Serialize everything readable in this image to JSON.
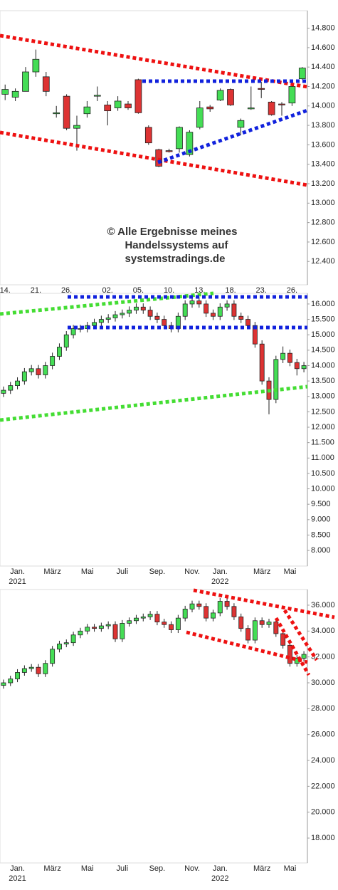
{
  "chart_data": [
    {
      "type": "candlestick",
      "categories": [
        "14.",
        null,
        null,
        "21.",
        null,
        null,
        "26.",
        null,
        null,
        null,
        "02.",
        null,
        null,
        "05.",
        null,
        null,
        "10.",
        null,
        null,
        "13.",
        null,
        null,
        "18.",
        null,
        null,
        "23.",
        null,
        null,
        "26.",
        null
      ],
      "open": [
        14120,
        14090,
        14150,
        14350,
        14300,
        13920,
        14100,
        13770,
        13920,
        14100,
        14010,
        13980,
        14020,
        14270,
        13780,
        13550,
        13540,
        13560,
        13500,
        13780,
        13990,
        14060,
        14170,
        13780,
        13970,
        14180,
        14040,
        14020,
        14030,
        14280
      ],
      "high": [
        14220,
        14180,
        14400,
        14580,
        14350,
        14000,
        14120,
        13900,
        14050,
        14200,
        14050,
        14100,
        14050,
        14280,
        13800,
        13560,
        13560,
        13790,
        13750,
        14050,
        14010,
        14180,
        14180,
        13870,
        14200,
        14250,
        14050,
        14040,
        14230,
        14400
      ],
      "low": [
        14060,
        14050,
        14150,
        14300,
        14100,
        13880,
        13750,
        13540,
        13880,
        14050,
        13800,
        13950,
        13960,
        13920,
        13600,
        13370,
        13520,
        13520,
        13480,
        13760,
        13940,
        14050,
        14000,
        13700,
        13960,
        14080,
        13900,
        13900,
        14000,
        14270
      ],
      "close": [
        14170,
        14150,
        14350,
        14480,
        14150,
        13930,
        13770,
        13800,
        13990,
        14110,
        13950,
        14050,
        13980,
        13930,
        13620,
        13380,
        13530,
        13780,
        13730,
        13980,
        13970,
        14160,
        14010,
        13850,
        13980,
        14170,
        13910,
        14010,
        14200,
        14390
      ],
      "ylim": [
        12160,
        14980
      ],
      "yticks": [
        {
          "value": 14800,
          "label": "14.800"
        },
        {
          "value": 14600,
          "label": "14.600"
        },
        {
          "value": 14400,
          "label": "14.400"
        },
        {
          "value": 14200,
          "label": "14.200"
        },
        {
          "value": 14000,
          "label": "14.000"
        },
        {
          "value": 13800,
          "label": "13.800"
        },
        {
          "value": 13600,
          "label": "13.600"
        },
        {
          "value": 13400,
          "label": "13.400"
        },
        {
          "value": 13200,
          "label": "13.200"
        },
        {
          "value": 13000,
          "label": "13.000"
        },
        {
          "value": 12800,
          "label": "12.800"
        },
        {
          "value": 12600,
          "label": "12.600"
        },
        {
          "value": 12400,
          "label": "12.400"
        }
      ],
      "up_color": "#44dd55",
      "down_color": "#dd3333",
      "annotation": [
        "© Alle Ergebnisse meines",
        "Handelssystems auf",
        "systemstradings.de"
      ]
    },
    {
      "type": "candlestick",
      "categories": [
        null,
        null,
        "Jan.",
        null,
        null,
        null,
        null,
        "März",
        null,
        null,
        null,
        null,
        "Mai",
        null,
        null,
        null,
        null,
        "Juli",
        null,
        null,
        null,
        null,
        "Sep.",
        null,
        null,
        null,
        null,
        "Nov.",
        null,
        null,
        null,
        "Jan.",
        null,
        null,
        null,
        null,
        null,
        "März",
        null,
        null,
        null,
        "Mai",
        null,
        null
      ],
      "years": [
        null,
        null,
        "2021",
        null,
        null,
        null,
        null,
        null,
        null,
        null,
        null,
        null,
        null,
        null,
        null,
        null,
        null,
        null,
        null,
        null,
        null,
        null,
        null,
        null,
        null,
        null,
        null,
        null,
        null,
        null,
        null,
        "2022",
        null,
        null,
        null,
        null,
        null,
        null,
        null,
        null,
        null,
        null,
        null,
        null
      ],
      "open": [
        13100,
        13200,
        13350,
        13500,
        13800,
        13900,
        13700,
        14000,
        14300,
        14600,
        15000,
        15200,
        15200,
        15300,
        15400,
        15500,
        15550,
        15650,
        15700,
        15800,
        15900,
        15800,
        15600,
        15500,
        15300,
        15200,
        15600,
        16000,
        16100,
        16000,
        15700,
        15600,
        15900,
        16000,
        15600,
        15500,
        15300,
        14700,
        13500,
        12900,
        14200,
        14400,
        14100,
        13900
      ],
      "high": [
        13320,
        13470,
        13620,
        13920,
        14020,
        14020,
        14120,
        14420,
        14720,
        15120,
        15320,
        15320,
        15420,
        15520,
        15620,
        15670,
        15770,
        15820,
        15920,
        16020,
        16020,
        15920,
        15720,
        15620,
        15420,
        15720,
        16120,
        16220,
        16220,
        16120,
        15820,
        16020,
        16120,
        16120,
        15720,
        15620,
        15420,
        14820,
        13620,
        14320,
        14620,
        14520,
        14220,
        14120
      ],
      "low": [
        12980,
        13080,
        13230,
        13380,
        13680,
        13580,
        13580,
        13880,
        14180,
        14480,
        14880,
        15080,
        15080,
        15180,
        15280,
        15380,
        15430,
        15530,
        15580,
        15680,
        15680,
        15480,
        15380,
        15180,
        15080,
        15080,
        15480,
        15880,
        15880,
        15580,
        15480,
        15480,
        15780,
        15480,
        15380,
        15180,
        14580,
        13380,
        12420,
        12780,
        14080,
        13980,
        13680,
        13780
      ],
      "close": [
        13200,
        13350,
        13500,
        13800,
        13900,
        13700,
        14000,
        14300,
        14600,
        15000,
        15200,
        15200,
        15300,
        15400,
        15500,
        15550,
        15650,
        15700,
        15800,
        15900,
        15800,
        15600,
        15500,
        15300,
        15200,
        15600,
        16000,
        16100,
        16000,
        15700,
        15600,
        15900,
        16000,
        15600,
        15500,
        15300,
        14700,
        13500,
        12900,
        14200,
        14400,
        14100,
        13900,
        14000
      ],
      "ylim": [
        7494,
        16345
      ],
      "yticks": [
        {
          "value": 16000,
          "label": "16.000"
        },
        {
          "value": 15500,
          "label": "15.500"
        },
        {
          "value": 15000,
          "label": "15.000"
        },
        {
          "value": 14500,
          "label": "14.500"
        },
        {
          "value": 14000,
          "label": "14.000"
        },
        {
          "value": 13500,
          "label": "13.500"
        },
        {
          "value": 13000,
          "label": "13.000"
        },
        {
          "value": 12500,
          "label": "12.500"
        },
        {
          "value": 12000,
          "label": "12.000"
        },
        {
          "value": 11500,
          "label": "11.500"
        },
        {
          "value": 11000,
          "label": "11.000"
        },
        {
          "value": 10500,
          "label": "10.500"
        },
        {
          "value": 10000,
          "label": "10.000"
        },
        {
          "value": 9500,
          "label": "9.500"
        },
        {
          "value": 9000,
          "label": "9.000"
        },
        {
          "value": 8500,
          "label": "8.500"
        },
        {
          "value": 8000,
          "label": "8.000"
        }
      ],
      "up_color": "#44dd55",
      "down_color": "#dd3333"
    },
    {
      "type": "candlestick",
      "categories": [
        null,
        null,
        "Jan.",
        null,
        null,
        null,
        null,
        "März",
        null,
        null,
        null,
        null,
        "Mai",
        null,
        null,
        null,
        null,
        "Juli",
        null,
        null,
        null,
        null,
        "Sep.",
        null,
        null,
        null,
        null,
        "Nov.",
        null,
        null,
        null,
        "Jan.",
        null,
        null,
        null,
        null,
        null,
        "März",
        null,
        null,
        null,
        "Mai",
        null,
        null
      ],
      "years": [
        null,
        null,
        "2021",
        null,
        null,
        null,
        null,
        null,
        null,
        null,
        null,
        null,
        null,
        null,
        null,
        null,
        null,
        null,
        null,
        null,
        null,
        null,
        null,
        null,
        null,
        null,
        null,
        null,
        null,
        null,
        null,
        "2022",
        null,
        null,
        null,
        null,
        null,
        null,
        null,
        null,
        null,
        null,
        null,
        null
      ],
      "open": [
        29800,
        30000,
        30300,
        30800,
        31100,
        31200,
        30700,
        31500,
        32600,
        33000,
        33100,
        33700,
        34000,
        34300,
        34200,
        34400,
        34500,
        33400,
        34600,
        34800,
        35000,
        35100,
        35300,
        34700,
        34500,
        34100,
        35000,
        35700,
        36100,
        35900,
        35000,
        35400,
        36300,
        35900,
        35100,
        34200,
        33300,
        34800,
        34500,
        34700,
        33800,
        32900,
        31500,
        31900
      ],
      "high": [
        30250,
        30550,
        31050,
        31350,
        31450,
        31450,
        31750,
        32850,
        33250,
        33350,
        33950,
        34250,
        34550,
        34550,
        34650,
        34750,
        34750,
        34850,
        35050,
        35250,
        35350,
        35550,
        35550,
        34950,
        34750,
        35250,
        35950,
        36350,
        36350,
        36150,
        35650,
        36550,
        36550,
        36150,
        35350,
        34450,
        35050,
        35050,
        34950,
        34950,
        34050,
        33150,
        32150,
        32450
      ],
      "low": [
        29550,
        29750,
        30050,
        30550,
        30850,
        30450,
        30450,
        31250,
        32350,
        32750,
        32850,
        33450,
        33750,
        33950,
        33950,
        34150,
        33150,
        33150,
        34350,
        34550,
        34750,
        34850,
        34450,
        34250,
        33850,
        33850,
        34750,
        35450,
        35650,
        34750,
        34750,
        35150,
        35650,
        34850,
        33950,
        33050,
        33050,
        34250,
        34250,
        33550,
        32650,
        31250,
        31250,
        31650
      ],
      "close": [
        30000,
        30300,
        30800,
        31100,
        31200,
        30700,
        31500,
        32600,
        33000,
        33100,
        33700,
        34000,
        34300,
        34200,
        34400,
        34500,
        33400,
        34600,
        34800,
        35000,
        35100,
        35300,
        34700,
        34500,
        34100,
        35000,
        35700,
        36100,
        35900,
        35000,
        35400,
        36300,
        35900,
        35100,
        34200,
        33300,
        34800,
        34500,
        34700,
        33800,
        32900,
        31500,
        31900,
        32200
      ],
      "ylim": [
        16077,
        37209
      ],
      "yticks": [
        {
          "value": 36000,
          "label": "36.000"
        },
        {
          "value": 34000,
          "label": "34.000"
        },
        {
          "value": 32000,
          "label": "32.000"
        },
        {
          "value": 30000,
          "label": "30.000"
        },
        {
          "value": 28000,
          "label": "28.000"
        },
        {
          "value": 26000,
          "label": "26.000"
        },
        {
          "value": 24000,
          "label": "24.000"
        },
        {
          "value": 22000,
          "label": "22.000"
        },
        {
          "value": 20000,
          "label": "20.000"
        },
        {
          "value": 18000,
          "label": "18.000"
        }
      ],
      "up_color": "#44dd55",
      "down_color": "#dd3333"
    }
  ]
}
